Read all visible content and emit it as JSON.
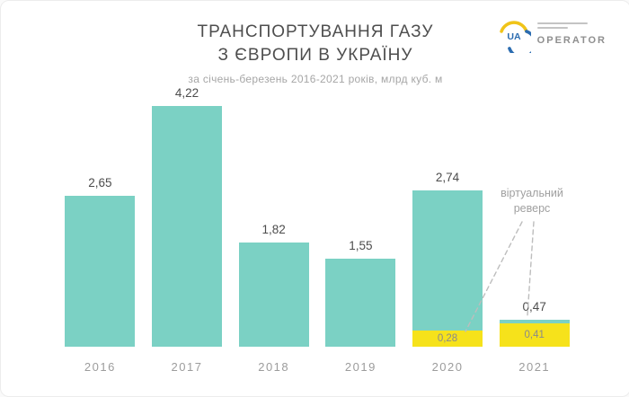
{
  "header": {
    "title_line1": "ТРАНСПОРТУВАННЯ ГАЗУ",
    "title_line2": "З ЄВРОПИ В УКРАЇНУ",
    "subtitle": "за січень-березень 2016-2021 років, млрд куб. м"
  },
  "logo": {
    "mark": "UA",
    "wordmark": "OPERATOR"
  },
  "annotation": {
    "line1": "віртуальний",
    "line2": "реверс"
  },
  "colors": {
    "bar": "#7bd1c4",
    "virtual_reverse": "#f6e21b",
    "logo_blue": "#2b6cb0",
    "logo_yellow": "#f0c419"
  },
  "chart_data": {
    "type": "bar",
    "title": "Транспортування газу з Європи в Україну",
    "subtitle": "за січень-березень 2016-2021 років, млрд куб. м",
    "categories": [
      "2016",
      "2017",
      "2018",
      "2019",
      "2020",
      "2021"
    ],
    "values": [
      2.65,
      4.22,
      1.82,
      1.55,
      2.74,
      0.47
    ],
    "value_labels": [
      "2,65",
      "4,22",
      "1,82",
      "1,55",
      "2,74",
      "0,47"
    ],
    "virtual_reverse_values": [
      0,
      0,
      0,
      0,
      0.28,
      0.41
    ],
    "virtual_reverse_labels": [
      "",
      "",
      "",
      "",
      "0,28",
      "0,41"
    ],
    "annotation": "віртуальний реверс",
    "ylabel": "млрд куб. м",
    "ylim": [
      0,
      4.22
    ],
    "grid": false,
    "legend": false
  }
}
